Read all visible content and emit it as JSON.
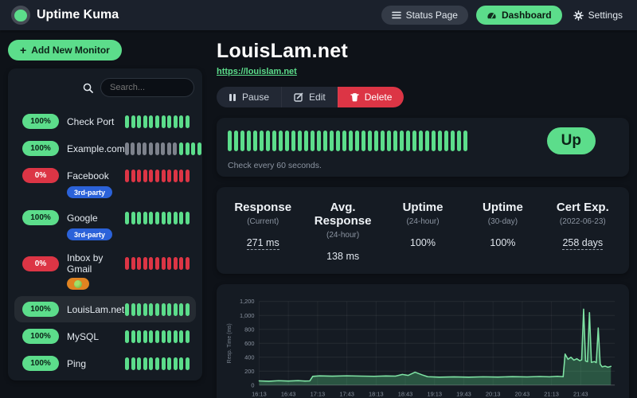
{
  "navbar": {
    "brand": "Uptime Kuma",
    "status_page_label": "Status Page",
    "dashboard_label": "Dashboard",
    "settings_label": "Settings"
  },
  "sidebar": {
    "add_monitor_label": "Add New Monitor",
    "search_placeholder": "Search...",
    "monitors": [
      {
        "name": "Check Port",
        "uptime": "100%",
        "status": "up",
        "selected": false,
        "tags": [],
        "beats": [
          "up",
          "up",
          "up",
          "up",
          "up",
          "up",
          "up",
          "up",
          "up",
          "up",
          "up"
        ]
      },
      {
        "name": "Example.com",
        "uptime": "100%",
        "status": "up",
        "selected": false,
        "tags": [],
        "beats": [
          "empty",
          "empty",
          "empty",
          "empty",
          "empty",
          "empty",
          "empty",
          "empty",
          "empty",
          "up",
          "up",
          "up",
          "up"
        ]
      },
      {
        "name": "Facebook",
        "uptime": "0%",
        "status": "down",
        "selected": false,
        "tags": [
          {
            "label": "3rd-party",
            "color": "#2b62d9",
            "icon": ""
          }
        ],
        "beats": [
          "down",
          "down",
          "down",
          "down",
          "down",
          "down",
          "down",
          "down",
          "down",
          "down",
          "down"
        ]
      },
      {
        "name": "Google",
        "uptime": "100%",
        "status": "up",
        "selected": false,
        "tags": [
          {
            "label": "3rd-party",
            "color": "#2b62d9",
            "icon": ""
          }
        ],
        "beats": [
          "up",
          "up",
          "up",
          "up",
          "up",
          "up",
          "up",
          "up",
          "up",
          "up",
          "up"
        ]
      },
      {
        "name": "Inbox by Gmail",
        "uptime": "0%",
        "status": "down",
        "selected": false,
        "tags": [
          {
            "label": "",
            "color": "#e08321",
            "icon": "face"
          }
        ],
        "beats": [
          "down",
          "down",
          "down",
          "down",
          "down",
          "down",
          "down",
          "down",
          "down",
          "down",
          "down"
        ]
      },
      {
        "name": "LouisLam.net",
        "uptime": "100%",
        "status": "up",
        "selected": true,
        "tags": [],
        "beats": [
          "up",
          "up",
          "up",
          "up",
          "up",
          "up",
          "up",
          "up",
          "up",
          "up",
          "up"
        ]
      },
      {
        "name": "MySQL",
        "uptime": "100%",
        "status": "up",
        "selected": false,
        "tags": [],
        "beats": [
          "up",
          "up",
          "up",
          "up",
          "up",
          "up",
          "up",
          "up",
          "up",
          "up",
          "up"
        ]
      },
      {
        "name": "Ping",
        "uptime": "100%",
        "status": "up",
        "selected": false,
        "tags": [],
        "beats": [
          "up",
          "up",
          "up",
          "up",
          "up",
          "up",
          "up",
          "up",
          "up",
          "up",
          "up"
        ]
      }
    ]
  },
  "main": {
    "title": "LouisLam.net",
    "url": "https://louislam.net",
    "actions": {
      "pause": "Pause",
      "edit": "Edit",
      "delete": "Delete"
    },
    "heartbeat": {
      "count": 38,
      "status": "up",
      "status_label": "Up",
      "interval_text": "Check every 60 seconds."
    },
    "stats": [
      {
        "title": "Response",
        "subtitle": "(Current)",
        "value": "271 ms",
        "underline": true
      },
      {
        "title": "Avg. Response",
        "subtitle": "(24-hour)",
        "value": "138 ms",
        "underline": false
      },
      {
        "title": "Uptime",
        "subtitle": "(24-hour)",
        "value": "100%",
        "underline": false
      },
      {
        "title": "Uptime",
        "subtitle": "(30-day)",
        "value": "100%",
        "underline": false
      },
      {
        "title": "Cert Exp.",
        "subtitle": "(2022-06-23)",
        "value": "258 days",
        "underline": true
      }
    ]
  },
  "chart_data": {
    "type": "area",
    "title": "",
    "xlabel": "",
    "ylabel": "Resp. Time (ms)",
    "ylim": [
      0,
      1200
    ],
    "xlim_minutes": [
      0,
      365
    ],
    "yticks": [
      0,
      200,
      400,
      600,
      800,
      1000,
      1200
    ],
    "ytick_labels": [
      "0",
      "200",
      "400",
      "600",
      "800",
      "1,000",
      "1,200"
    ],
    "xtick_minutes": [
      0,
      30,
      60,
      90,
      120,
      150,
      180,
      210,
      240,
      270,
      300,
      330
    ],
    "xtick_labels": [
      "16:13",
      "16:43",
      "17:13",
      "17:43",
      "18:13",
      "18:43",
      "19:13",
      "19:43",
      "20:13",
      "20:43",
      "21:13",
      "21:43"
    ],
    "grid": true,
    "legend": "none",
    "series": [
      {
        "name": "Resp. Time (ms)",
        "line_color": "#7ee2a3",
        "fill_color": "rgba(92,221,139,0.30)",
        "points": [
          [
            0,
            60
          ],
          [
            10,
            55
          ],
          [
            20,
            63
          ],
          [
            30,
            58
          ],
          [
            40,
            64
          ],
          [
            47,
            58
          ],
          [
            52,
            60
          ],
          [
            55,
            125
          ],
          [
            62,
            132
          ],
          [
            75,
            128
          ],
          [
            90,
            133
          ],
          [
            105,
            129
          ],
          [
            118,
            126
          ],
          [
            130,
            131
          ],
          [
            140,
            129
          ],
          [
            147,
            153
          ],
          [
            153,
            139
          ],
          [
            160,
            185
          ],
          [
            167,
            148
          ],
          [
            173,
            120
          ],
          [
            185,
            114
          ],
          [
            200,
            118
          ],
          [
            215,
            114
          ],
          [
            230,
            119
          ],
          [
            245,
            115
          ],
          [
            260,
            121
          ],
          [
            275,
            117
          ],
          [
            288,
            123
          ],
          [
            298,
            119
          ],
          [
            306,
            126
          ],
          [
            312,
            120
          ],
          [
            314,
            445
          ],
          [
            317,
            370
          ],
          [
            320,
            400
          ],
          [
            323,
            358
          ],
          [
            326,
            378
          ],
          [
            329,
            350
          ],
          [
            331,
            362
          ],
          [
            333,
            1090
          ],
          [
            335,
            345
          ],
          [
            337,
            335
          ],
          [
            339,
            1040
          ],
          [
            341,
            325
          ],
          [
            344,
            338
          ],
          [
            346,
            322
          ],
          [
            348,
            820
          ],
          [
            350,
            300
          ],
          [
            352,
            262
          ],
          [
            355,
            272
          ],
          [
            358,
            256
          ],
          [
            361,
            268
          ]
        ]
      }
    ]
  }
}
